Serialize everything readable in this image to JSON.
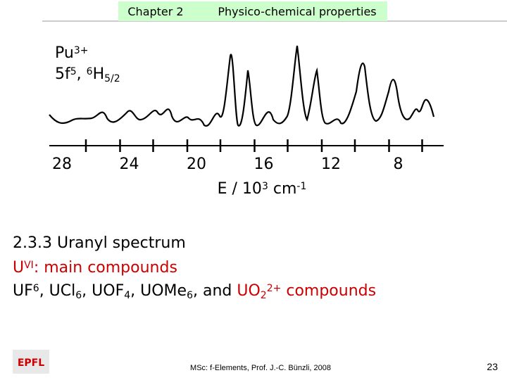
{
  "header": {
    "chapter": "Chapter 2",
    "section": "Physico-chemical properties"
  },
  "spectrum": {
    "ion_label": [
      {
        "text": "Pu"
      },
      {
        "text": "3+",
        "style": "sup"
      }
    ],
    "state_label": [
      {
        "text": "5f"
      },
      {
        "text": "5",
        "style": "sup"
      },
      {
        "text": ", "
      },
      {
        "text": "6",
        "style": "sup"
      },
      {
        "text": "H"
      },
      {
        "text": "5/2",
        "style": "sub"
      }
    ],
    "ticks": [
      "28",
      "24",
      "20",
      "16",
      "12",
      "8"
    ],
    "axis_label": [
      {
        "text": "E / 10"
      },
      {
        "text": "3",
        "style": "sup"
      },
      {
        "text": " cm"
      },
      {
        "text": "-1",
        "style": "sup"
      }
    ]
  },
  "body": {
    "heading": [
      {
        "text": "2.3.3  Uranyl spectrum"
      }
    ],
    "line1": [
      {
        "text": "U",
        "color": "#cc0000"
      },
      {
        "text": "VI",
        "style": "sup",
        "color": "#cc0000"
      },
      {
        "text": ": main compounds",
        "color": "#cc0000"
      }
    ],
    "line2": [
      {
        "text": "UF"
      },
      {
        "text": "6",
        "style": "sup"
      },
      {
        "text": ", UCl"
      },
      {
        "text": "6",
        "style": "sub"
      },
      {
        "text": ", UOF"
      },
      {
        "text": "4",
        "style": "sub"
      },
      {
        "text": ", UOMe"
      },
      {
        "text": "6",
        "style": "sub"
      },
      {
        "text": ", and "
      },
      {
        "text": "UO",
        "color": "#cc0000"
      },
      {
        "text": "2",
        "style": "sub",
        "color": "#cc0000"
      },
      {
        "text": "2+",
        "style": "sup",
        "color": "#cc0000"
      },
      {
        "text": " compounds",
        "color": "#cc0000"
      }
    ]
  },
  "footer": {
    "logo": "EPFL",
    "credit": "MSc: f-Elements,  Prof. J.-C. Bünzli, 2008",
    "page": "23"
  }
}
